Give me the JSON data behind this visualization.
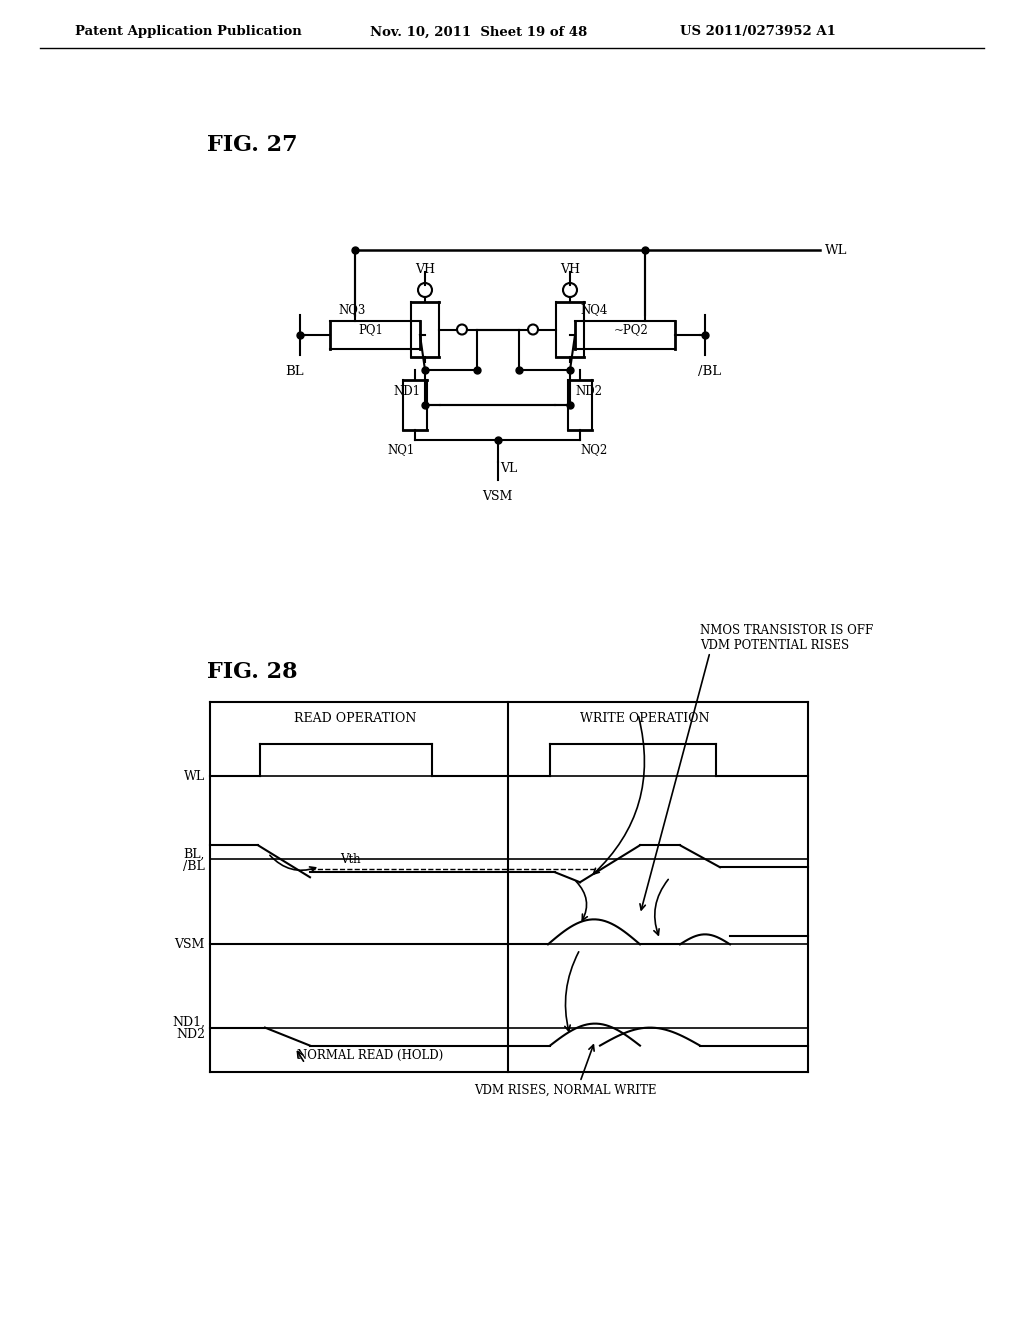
{
  "header_left": "Patent Application Publication",
  "header_mid": "Nov. 10, 2011  Sheet 19 of 48",
  "header_right": "US 2011/0273952 A1",
  "fig27_label": "FIG. 27",
  "fig28_label": "FIG. 28",
  "bg_color": "#ffffff",
  "line_color": "#000000"
}
